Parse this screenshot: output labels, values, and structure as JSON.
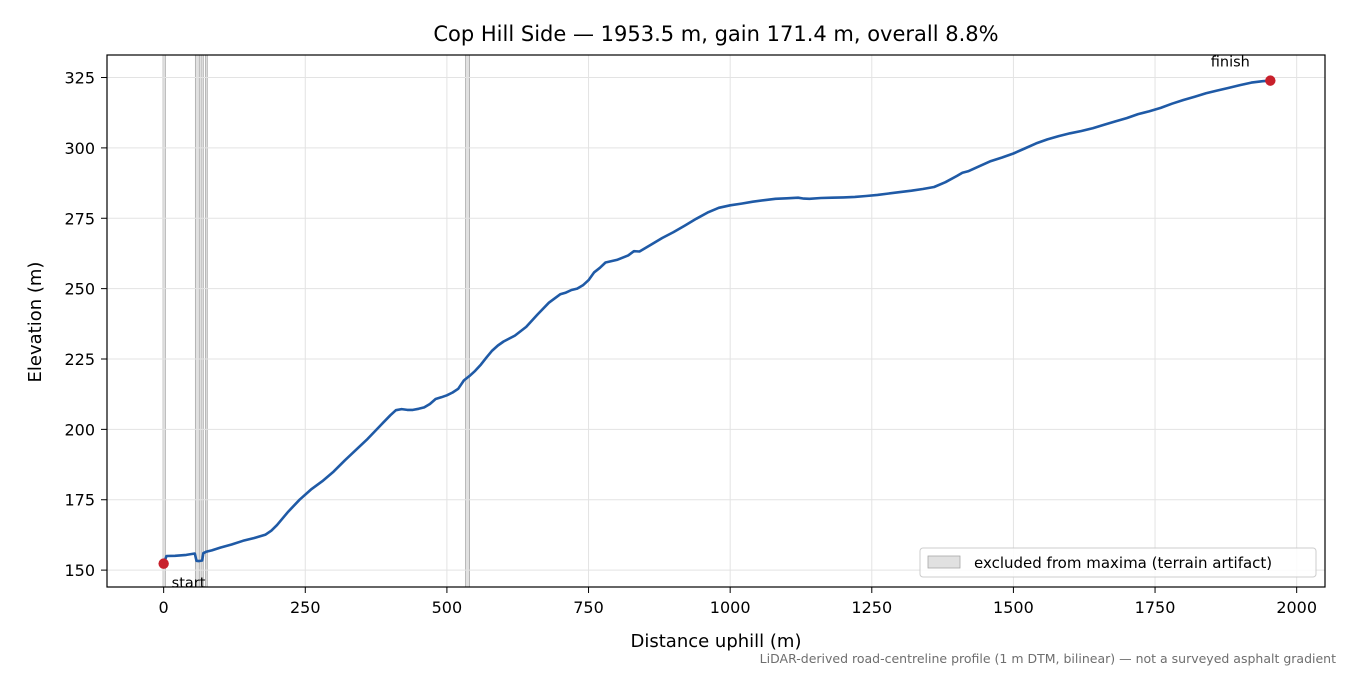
{
  "chart_data": {
    "type": "line",
    "title": "Cop Hill Side — 1953.5 m, gain 171.4 m, overall 8.8%",
    "xlabel": "Distance uphill (m)",
    "ylabel": "Elevation (m)",
    "xlim": [
      -100,
      2050
    ],
    "ylim": [
      144,
      333
    ],
    "x_ticks": [
      0,
      250,
      500,
      750,
      1000,
      1250,
      1500,
      1750,
      2000
    ],
    "y_ticks": [
      150,
      175,
      200,
      225,
      250,
      275,
      300,
      325
    ],
    "grid": true,
    "series": [
      {
        "color": "#1f5aa6",
        "x": [
          0,
          5,
          20,
          40,
          55,
          58,
          62,
          68,
          70,
          75,
          85,
          100,
          120,
          140,
          160,
          180,
          190,
          200,
          220,
          240,
          260,
          280,
          300,
          320,
          340,
          360,
          380,
          400,
          410,
          420,
          430,
          440,
          450,
          460,
          470,
          480,
          490,
          500,
          510,
          520,
          530,
          540,
          550,
          560,
          570,
          580,
          590,
          600,
          620,
          640,
          660,
          680,
          700,
          710,
          720,
          730,
          740,
          750,
          760,
          770,
          780,
          800,
          820,
          830,
          840,
          860,
          880,
          900,
          920,
          940,
          960,
          980,
          1000,
          1020,
          1040,
          1060,
          1080,
          1100,
          1120,
          1130,
          1140,
          1160,
          1180,
          1200,
          1220,
          1240,
          1260,
          1280,
          1300,
          1320,
          1340,
          1360,
          1380,
          1400,
          1410,
          1420,
          1440,
          1460,
          1480,
          1500,
          1520,
          1540,
          1560,
          1580,
          1600,
          1620,
          1640,
          1660,
          1680,
          1700,
          1720,
          1740,
          1760,
          1780,
          1800,
          1820,
          1840,
          1860,
          1880,
          1900,
          1920,
          1940,
          1953.5
        ],
        "values": [
          152.3,
          155.0,
          155.1,
          155.4,
          155.9,
          153.3,
          153.2,
          153.4,
          156.0,
          156.5,
          157.0,
          158.0,
          159.1,
          160.4,
          161.4,
          162.6,
          164.0,
          166.0,
          170.8,
          175.0,
          178.6,
          181.6,
          185.0,
          189.0,
          192.8,
          196.6,
          200.8,
          205.0,
          206.8,
          207.2,
          206.9,
          206.9,
          207.3,
          207.8,
          209.0,
          210.8,
          211.4,
          212.1,
          213.1,
          214.4,
          217.4,
          219.0,
          220.8,
          223.0,
          225.6,
          228.0,
          229.8,
          231.2,
          233.3,
          236.4,
          240.8,
          245.0,
          248.0,
          248.6,
          249.5,
          250.0,
          251.2,
          253.0,
          255.8,
          257.4,
          259.3,
          260.2,
          261.8,
          263.3,
          263.2,
          265.6,
          268.0,
          270.1,
          272.4,
          274.8,
          277.0,
          278.7,
          279.6,
          280.2,
          280.9,
          281.4,
          281.9,
          282.1,
          282.3,
          282.0,
          281.9,
          282.2,
          282.3,
          282.4,
          282.6,
          282.9,
          283.3,
          283.8,
          284.3,
          284.8,
          285.4,
          286.1,
          287.8,
          290.0,
          291.2,
          291.7,
          293.5,
          295.3,
          296.6,
          298.0,
          299.8,
          301.6,
          303.0,
          304.2,
          305.2,
          306.0,
          307.0,
          308.2,
          309.4,
          310.6,
          312.0,
          313.0,
          314.2,
          315.7,
          317.0,
          318.2,
          319.4,
          320.4,
          321.3,
          322.3,
          323.2,
          323.7,
          323.9
        ]
      }
    ],
    "excluded_bands": [
      [
        -1,
        3
      ],
      [
        56,
        63
      ],
      [
        66,
        70
      ],
      [
        74,
        77
      ],
      [
        533,
        540
      ]
    ],
    "markers": [
      {
        "x": 0,
        "y": 152.3,
        "label": "start",
        "color": "#c8202b"
      },
      {
        "x": 1953.5,
        "y": 323.9,
        "label": "finish",
        "color": "#c8202b"
      }
    ],
    "legend": {
      "label": "excluded from maxima (terrain artifact)",
      "placement": "lower-right"
    }
  },
  "caption": "LiDAR-derived road-centreline profile (1 m DTM, bilinear) — not a surveyed asphalt gradient"
}
